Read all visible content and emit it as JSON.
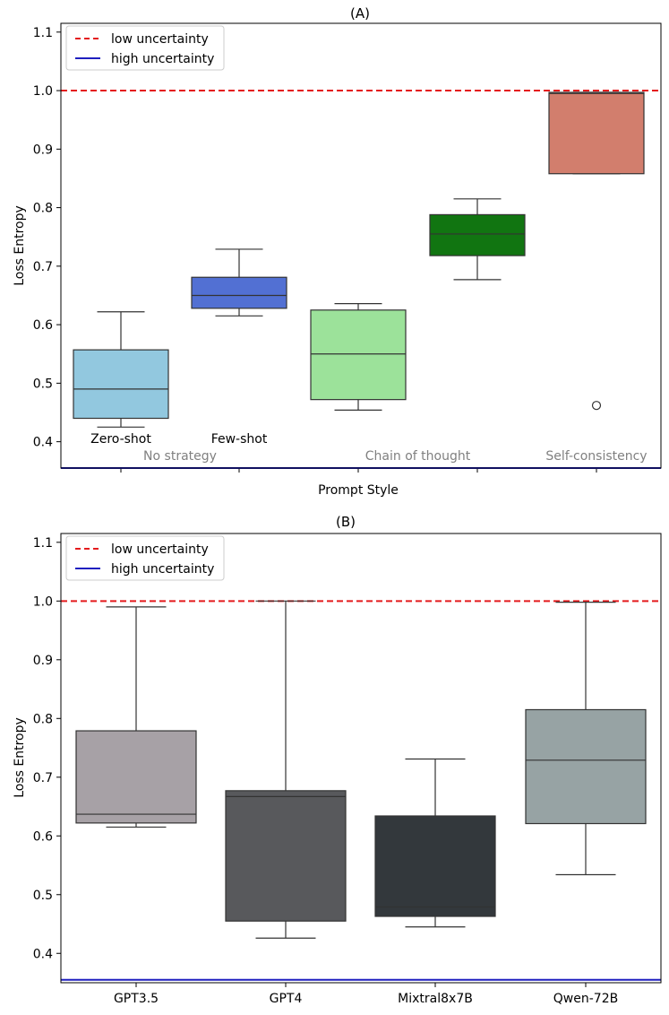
{
  "chart_data": [
    {
      "panel": "(A)",
      "type": "box",
      "title": "(A)",
      "xlabel": "Prompt Style",
      "ylabel": "Loss Entropy",
      "ylim": [
        0.355,
        1.115
      ],
      "yticks": [
        "0.4",
        "0.5",
        "0.6",
        "0.7",
        "0.8",
        "0.9",
        "1.0",
        "1.1"
      ],
      "ytick_values": [
        0.4,
        0.5,
        0.6,
        0.7,
        0.8,
        0.9,
        1.0,
        1.1
      ],
      "legend": {
        "position": "top-left",
        "items": [
          {
            "label": "low uncertainty",
            "color": "#e41a1c",
            "style": "dashed"
          },
          {
            "label": "high uncertainty",
            "color": "#1f1fbf",
            "style": "solid"
          }
        ]
      },
      "hlines": [
        {
          "name": "low uncertainty",
          "y": 1.0,
          "color": "#e41a1c",
          "style": "dashed"
        },
        {
          "name": "high uncertainty",
          "y": 0.355,
          "color": "#1f1fbf",
          "style": "solid"
        }
      ],
      "boxes": [
        {
          "label": "Zero-shot",
          "color": "#92c8df",
          "whisker_low": 0.425,
          "q1": 0.44,
          "median": 0.49,
          "q3": 0.557,
          "whisker_high": 0.622,
          "outliers": []
        },
        {
          "label": "Few-shot",
          "color": "#5270d3",
          "whisker_low": 0.615,
          "q1": 0.628,
          "median": 0.65,
          "q3": 0.681,
          "whisker_high": 0.729,
          "outliers": []
        },
        {
          "label": "",
          "color": "#9ce29a",
          "whisker_low": 0.454,
          "q1": 0.472,
          "median": 0.55,
          "q3": 0.625,
          "whisker_high": 0.636,
          "outliers": []
        },
        {
          "label": "",
          "color": "#117511",
          "whisker_low": 0.677,
          "q1": 0.718,
          "median": 0.755,
          "q3": 0.788,
          "whisker_high": 0.815,
          "outliers": []
        },
        {
          "label": "",
          "color": "#d27e6d",
          "whisker_low": 0.858,
          "q1": 0.858,
          "median": 0.995,
          "q3": 0.997,
          "whisker_high": 0.997,
          "outliers": [
            0.462
          ]
        }
      ],
      "group_labels": [
        {
          "text": "No strategy",
          "center": 1.5
        },
        {
          "text": "Chain of thought",
          "center": 3.5
        },
        {
          "text": "Self-consistency",
          "center": 5
        }
      ]
    },
    {
      "panel": "(B)",
      "type": "box",
      "title": "(B)",
      "xlabel": "",
      "ylabel": "Loss Entropy",
      "ylim": [
        0.35,
        1.115
      ],
      "yticks": [
        "0.4",
        "0.5",
        "0.6",
        "0.7",
        "0.8",
        "0.9",
        "1.0",
        "1.1"
      ],
      "ytick_values": [
        0.4,
        0.5,
        0.6,
        0.7,
        0.8,
        0.9,
        1.0,
        1.1
      ],
      "legend": {
        "position": "top-left",
        "items": [
          {
            "label": "low uncertainty",
            "color": "#e41a1c",
            "style": "dashed"
          },
          {
            "label": "high uncertainty",
            "color": "#1f1fbf",
            "style": "solid"
          }
        ]
      },
      "hlines": [
        {
          "name": "low uncertainty",
          "y": 1.0,
          "color": "#e41a1c",
          "style": "dashed"
        },
        {
          "name": "high uncertainty",
          "y": 0.355,
          "color": "#1f1fbf",
          "style": "solid"
        }
      ],
      "boxes": [
        {
          "label": "GPT3.5",
          "color": "#a7a1a6",
          "whisker_low": 0.615,
          "q1": 0.622,
          "median": 0.637,
          "q3": 0.779,
          "whisker_high": 0.99,
          "outliers": []
        },
        {
          "label": "GPT4",
          "color": "#58595c",
          "whisker_low": 0.426,
          "q1": 0.455,
          "median": 0.667,
          "q3": 0.677,
          "whisker_high": 1.0,
          "outliers": []
        },
        {
          "label": "Mixtral8x7B",
          "color": "#33383c",
          "whisker_low": 0.445,
          "q1": 0.463,
          "median": 0.479,
          "q3": 0.634,
          "whisker_high": 0.731,
          "outliers": []
        },
        {
          "label": "Qwen-72B",
          "color": "#97a3a4",
          "whisker_low": 0.534,
          "q1": 0.621,
          "median": 0.729,
          "q3": 0.815,
          "whisker_high": 0.998,
          "outliers": []
        }
      ],
      "group_labels": []
    }
  ]
}
